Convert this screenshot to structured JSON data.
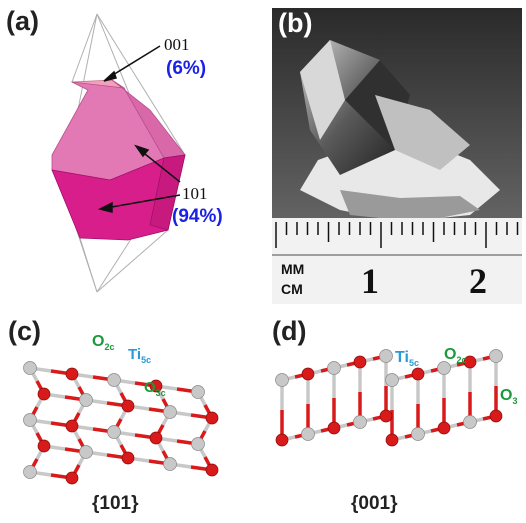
{
  "panels": {
    "a": {
      "label": "(a)",
      "top_facet": "001",
      "top_pct": "(6%)",
      "side_facet": "101",
      "side_pct": "(94%)"
    },
    "b": {
      "label": "(b)",
      "ruler": {
        "mm": "MM",
        "cm": "CM",
        "n1": "1",
        "n2": "2"
      }
    },
    "c": {
      "label": "(c)",
      "atoms": {
        "o2c_base": "O",
        "o2c_sub": "2c",
        "ti5c_base": "Ti",
        "ti5c_sub": "5c",
        "o3c_base": "O",
        "o3c_sub": "3c"
      },
      "caption": "{101}"
    },
    "d": {
      "label": "(d)",
      "atoms": {
        "ti5c_base": "Ti",
        "ti5c_sub": "5c",
        "o2c_base": "O",
        "o2c_sub": "2c",
        "o3_base": "O",
        "o3_sub": "3"
      },
      "caption": "{001}"
    }
  },
  "colors": {
    "pct": "#1a22e6",
    "ti_label": "#2a9ad8",
    "o_label": "#1a9a3a",
    "oxygen": "#d81a1a",
    "titanium": "#c8c8c8"
  }
}
